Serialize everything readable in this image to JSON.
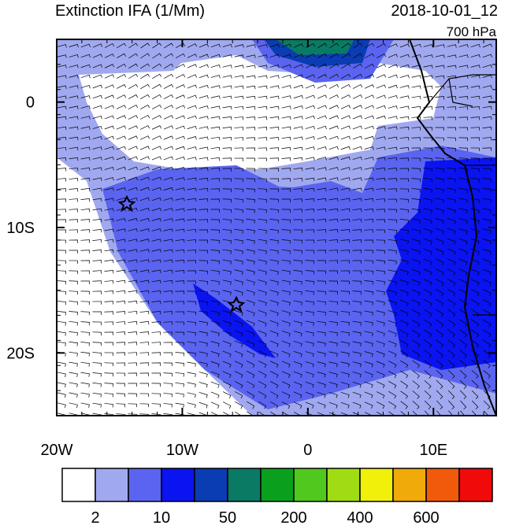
{
  "map": {
    "title": "Extinction IFA (1/Mm)",
    "valid_time": "2018-10-01_12",
    "level": "700 hPa",
    "xlim": [
      -20,
      15
    ],
    "ylim": [
      -25,
      5
    ],
    "lon_ticks": [
      {
        "value": -20,
        "label": "20W"
      },
      {
        "value": -10,
        "label": "10W"
      },
      0,
      {
        "value": 10,
        "label": "10E"
      }
    ],
    "lat_ticks": [
      0,
      {
        "value": -10,
        "label": "10S"
      },
      {
        "value": -20,
        "label": "20S"
      }
    ],
    "colorbar": {
      "colors": [
        "#ffffff",
        "#a0a8f0",
        "#5a64f0",
        "#0a14f0",
        "#0a3cb4",
        "#0a7a64",
        "#0aa01e",
        "#50c81e",
        "#a0dc14",
        "#f0f00a",
        "#f0aa0a",
        "#f05a0a",
        "#f00a0a"
      ],
      "labels": [
        2,
        10,
        50,
        200,
        400,
        600
      ]
    }
  }
}
